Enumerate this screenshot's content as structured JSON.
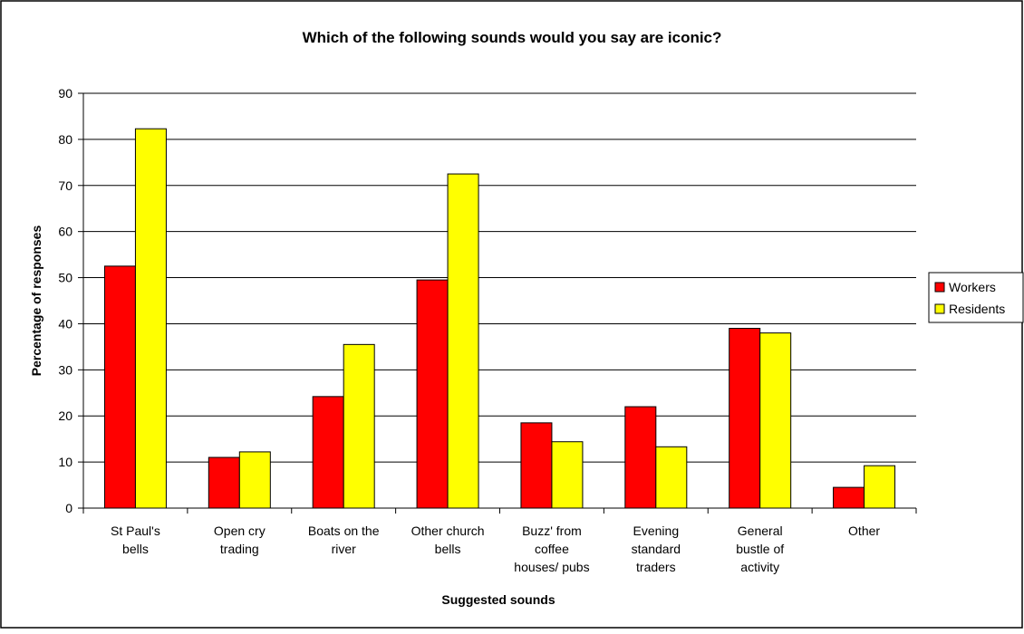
{
  "chart_data": {
    "type": "bar",
    "title": "Which of the following sounds would you say are iconic?",
    "xlabel": "Suggested sounds",
    "ylabel": "Percentage of responses",
    "ylim": [
      0,
      90
    ],
    "yticks": [
      0,
      10,
      20,
      30,
      40,
      50,
      60,
      70,
      80,
      90
    ],
    "grid": true,
    "legend_position": "right",
    "categories": [
      [
        "St Paul's",
        "bells"
      ],
      [
        "Open cry",
        "trading"
      ],
      [
        "Boats on the",
        "river"
      ],
      [
        "Other church",
        "bells"
      ],
      [
        "Buzz' from",
        "coffee",
        "houses/ pubs"
      ],
      [
        "Evening",
        "standard",
        "traders"
      ],
      [
        "General",
        "bustle of",
        "activity"
      ],
      [
        "Other"
      ]
    ],
    "series": [
      {
        "name": "Workers",
        "color": "#ff0000",
        "values": [
          52.5,
          11.0,
          24.2,
          49.5,
          18.5,
          22.0,
          39.0,
          4.5
        ]
      },
      {
        "name": "Residents",
        "color": "#ffff00",
        "values": [
          82.3,
          12.2,
          35.5,
          72.5,
          14.4,
          13.3,
          38.0,
          9.2
        ]
      }
    ]
  }
}
